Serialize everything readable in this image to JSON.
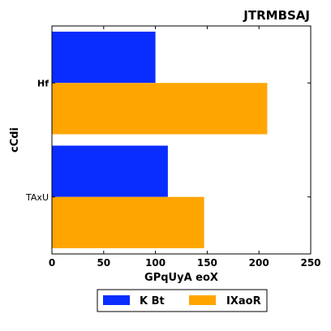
{
  "chart_data": {
    "type": "bar",
    "orientation": "horizontal",
    "title": "JTRMBSAJ",
    "xlabel": "GPqUyA eoX",
    "ylabel": "cCdi",
    "categories": [
      "Hf",
      "TAxU"
    ],
    "series": [
      {
        "name": "K Bt",
        "values": [
          100,
          112
        ],
        "color": "#0a2dff"
      },
      {
        "name": "IXaoR",
        "values": [
          208,
          147
        ],
        "color": "#ffa500"
      }
    ],
    "xlim": [
      0,
      250
    ],
    "xticks": [
      0,
      50,
      100,
      150,
      200,
      250
    ],
    "grid": false,
    "legend_position": "bottom"
  }
}
